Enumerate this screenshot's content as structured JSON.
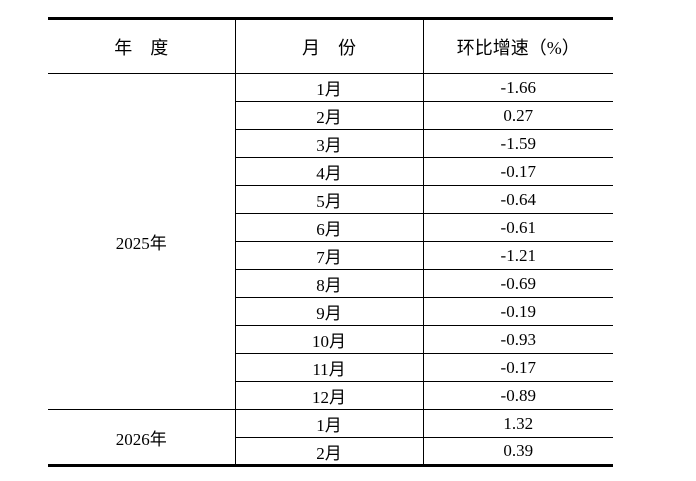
{
  "page": {
    "background": "#ffffff"
  },
  "table": {
    "headers": {
      "year": "年　度",
      "month": "月　份",
      "growth": "环比增速（%）"
    },
    "groups": [
      {
        "year": "2025年",
        "rows": [
          {
            "month": "1月",
            "value": "-1.66"
          },
          {
            "month": "2月",
            "value": "0.27"
          },
          {
            "month": "3月",
            "value": "-1.59"
          },
          {
            "month": "4月",
            "value": "-0.17"
          },
          {
            "month": "5月",
            "value": "-0.64"
          },
          {
            "month": "6月",
            "value": "-0.61"
          },
          {
            "month": "7月",
            "value": "-1.21"
          },
          {
            "month": "8月",
            "value": "-0.69"
          },
          {
            "month": "9月",
            "value": "-0.19"
          },
          {
            "month": "10月",
            "value": "-0.93"
          },
          {
            "month": "11月",
            "value": "-0.17"
          },
          {
            "month": "12月",
            "value": "-0.89"
          }
        ]
      },
      {
        "year": "2026年",
        "rows": [
          {
            "month": "1月",
            "value": "1.32"
          },
          {
            "month": "2月",
            "value": "0.39"
          }
        ]
      }
    ],
    "colors": {
      "border": "#000000",
      "text": "#000000",
      "background": "#ffffff"
    }
  }
}
